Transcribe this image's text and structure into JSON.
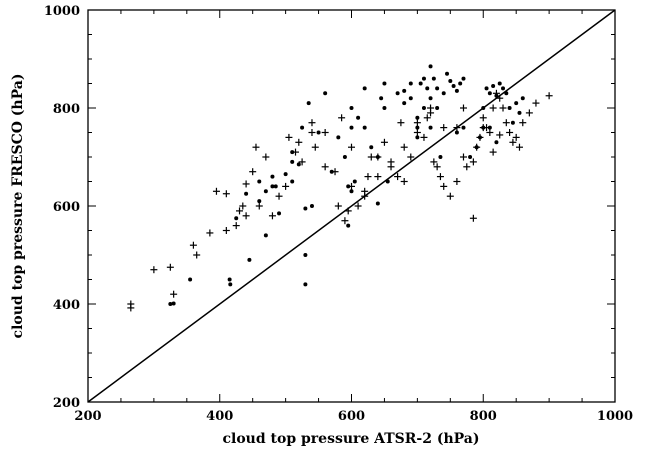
{
  "chart_data": {
    "type": "scatter",
    "title": "",
    "xlabel": "cloud top pressure ATSR-2 (hPa)",
    "ylabel": "cloud top pressure FRESCO (hPa)",
    "xlim": [
      200,
      1000
    ],
    "ylim": [
      200,
      1000
    ],
    "x_ticks": [
      200,
      400,
      600,
      800,
      1000
    ],
    "y_ticks": [
      200,
      400,
      600,
      800,
      1000
    ],
    "x_tick_labels": [
      "200",
      "400",
      "600",
      "800",
      "1000"
    ],
    "y_tick_labels": [
      "200",
      "400",
      "600",
      "800",
      "1000"
    ],
    "grid": false,
    "reference_line": [
      [
        200,
        200
      ],
      [
        1000,
        1000
      ]
    ],
    "series": [
      {
        "marker": "dot",
        "points": [
          [
            325,
            400
          ],
          [
            330,
            401
          ],
          [
            355,
            450
          ],
          [
            415,
            450
          ],
          [
            416,
            440
          ],
          [
            445,
            490
          ],
          [
            470,
            540
          ],
          [
            490,
            585
          ],
          [
            425,
            575
          ],
          [
            440,
            625
          ],
          [
            460,
            650
          ],
          [
            480,
            660
          ],
          [
            485,
            640
          ],
          [
            500,
            665
          ],
          [
            510,
            690
          ],
          [
            520,
            685
          ],
          [
            510,
            710
          ],
          [
            530,
            595
          ],
          [
            540,
            600
          ],
          [
            530,
            500
          ],
          [
            530,
            440
          ],
          [
            535,
            810
          ],
          [
            525,
            760
          ],
          [
            550,
            750
          ],
          [
            570,
            670
          ],
          [
            580,
            740
          ],
          [
            590,
            700
          ],
          [
            595,
            640
          ],
          [
            600,
            630
          ],
          [
            605,
            650
          ],
          [
            600,
            800
          ],
          [
            610,
            780
          ],
          [
            620,
            760
          ],
          [
            630,
            720
          ],
          [
            640,
            700
          ],
          [
            620,
            840
          ],
          [
            645,
            820
          ],
          [
            650,
            800
          ],
          [
            670,
            830
          ],
          [
            680,
            810
          ],
          [
            690,
            820
          ],
          [
            700,
            780
          ],
          [
            700,
            760
          ],
          [
            710,
            800
          ],
          [
            720,
            820
          ],
          [
            730,
            800
          ],
          [
            730,
            840
          ],
          [
            740,
            830
          ],
          [
            745,
            870
          ],
          [
            750,
            855
          ],
          [
            755,
            845
          ],
          [
            760,
            835
          ],
          [
            765,
            850
          ],
          [
            770,
            860
          ],
          [
            720,
            885
          ],
          [
            705,
            850
          ],
          [
            710,
            860
          ],
          [
            715,
            840
          ],
          [
            725,
            860
          ],
          [
            690,
            850
          ],
          [
            680,
            835
          ],
          [
            650,
            850
          ],
          [
            600,
            760
          ],
          [
            640,
            605
          ],
          [
            655,
            650
          ],
          [
            700,
            740
          ],
          [
            720,
            760
          ],
          [
            735,
            700
          ],
          [
            760,
            750
          ],
          [
            770,
            760
          ],
          [
            780,
            700
          ],
          [
            790,
            720
          ],
          [
            800,
            800
          ],
          [
            805,
            840
          ],
          [
            810,
            830
          ],
          [
            815,
            845
          ],
          [
            820,
            825
          ],
          [
            825,
            850
          ],
          [
            830,
            840
          ],
          [
            835,
            830
          ],
          [
            840,
            800
          ],
          [
            845,
            770
          ],
          [
            850,
            810
          ],
          [
            855,
            790
          ],
          [
            860,
            820
          ],
          [
            800,
            760
          ],
          [
            795,
            740
          ],
          [
            810,
            760
          ],
          [
            820,
            730
          ],
          [
            470,
            630
          ],
          [
            480,
            640
          ],
          [
            460,
            610
          ],
          [
            560,
            830
          ],
          [
            595,
            560
          ],
          [
            510,
            650
          ]
        ]
      },
      {
        "marker": "plus",
        "points": [
          [
            265,
            400
          ],
          [
            265,
            392
          ],
          [
            300,
            470
          ],
          [
            325,
            475
          ],
          [
            330,
            420
          ],
          [
            360,
            520
          ],
          [
            365,
            500
          ],
          [
            385,
            545
          ],
          [
            395,
            630
          ],
          [
            410,
            625
          ],
          [
            410,
            550
          ],
          [
            425,
            560
          ],
          [
            430,
            590
          ],
          [
            435,
            600
          ],
          [
            440,
            580
          ],
          [
            455,
            720
          ],
          [
            460,
            600
          ],
          [
            480,
            580
          ],
          [
            490,
            620
          ],
          [
            500,
            640
          ],
          [
            505,
            740
          ],
          [
            515,
            710
          ],
          [
            520,
            730
          ],
          [
            525,
            690
          ],
          [
            540,
            750
          ],
          [
            545,
            720
          ],
          [
            560,
            680
          ],
          [
            575,
            670
          ],
          [
            580,
            600
          ],
          [
            590,
            570
          ],
          [
            595,
            590
          ],
          [
            600,
            640
          ],
          [
            610,
            600
          ],
          [
            620,
            630
          ],
          [
            625,
            660
          ],
          [
            630,
            700
          ],
          [
            640,
            700
          ],
          [
            650,
            730
          ],
          [
            660,
            690
          ],
          [
            670,
            660
          ],
          [
            675,
            770
          ],
          [
            680,
            650
          ],
          [
            690,
            700
          ],
          [
            700,
            750
          ],
          [
            710,
            740
          ],
          [
            715,
            780
          ],
          [
            720,
            800
          ],
          [
            725,
            690
          ],
          [
            730,
            680
          ],
          [
            735,
            660
          ],
          [
            740,
            640
          ],
          [
            750,
            620
          ],
          [
            760,
            650
          ],
          [
            770,
            700
          ],
          [
            775,
            680
          ],
          [
            785,
            690
          ],
          [
            790,
            720
          ],
          [
            795,
            740
          ],
          [
            800,
            780
          ],
          [
            805,
            760
          ],
          [
            810,
            750
          ],
          [
            815,
            800
          ],
          [
            820,
            830
          ],
          [
            825,
            820
          ],
          [
            830,
            800
          ],
          [
            835,
            770
          ],
          [
            840,
            750
          ],
          [
            845,
            730
          ],
          [
            850,
            740
          ],
          [
            855,
            720
          ],
          [
            860,
            770
          ],
          [
            870,
            790
          ],
          [
            880,
            810
          ],
          [
            900,
            825
          ],
          [
            785,
            575
          ],
          [
            800,
            760
          ],
          [
            815,
            710
          ],
          [
            825,
            745
          ],
          [
            770,
            800
          ],
          [
            760,
            760
          ],
          [
            740,
            760
          ],
          [
            720,
            790
          ],
          [
            700,
            770
          ],
          [
            680,
            720
          ],
          [
            660,
            680
          ],
          [
            640,
            660
          ],
          [
            620,
            620
          ],
          [
            600,
            720
          ],
          [
            585,
            780
          ],
          [
            560,
            750
          ],
          [
            540,
            770
          ],
          [
            470,
            700
          ],
          [
            450,
            670
          ],
          [
            440,
            645
          ]
        ]
      }
    ]
  }
}
